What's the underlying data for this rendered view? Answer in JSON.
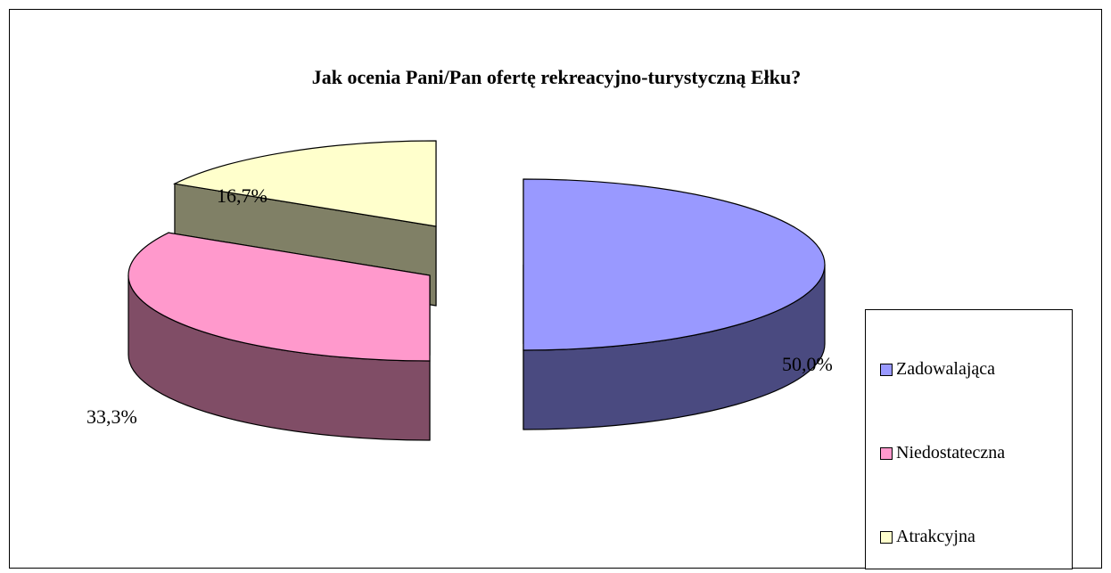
{
  "chart_data": {
    "type": "pie",
    "title": "Jak ocenia Pani/Pan ofertę rekreacyjno-turystyczną Ełku?",
    "categories": [
      "Zadowalająca",
      "Niedostateczna",
      "Atrakcyjna"
    ],
    "values": [
      50.0,
      33.3,
      16.7
    ],
    "data_labels": [
      "50,0%",
      "33,3%",
      "16,7%"
    ],
    "colors": [
      "#9999ff",
      "#ff99cc",
      "#ffffcc"
    ],
    "side_colors": [
      "#4a4a80",
      "#804d66",
      "#808066"
    ],
    "exploded": true,
    "three_d": true,
    "legend_position": "right"
  }
}
